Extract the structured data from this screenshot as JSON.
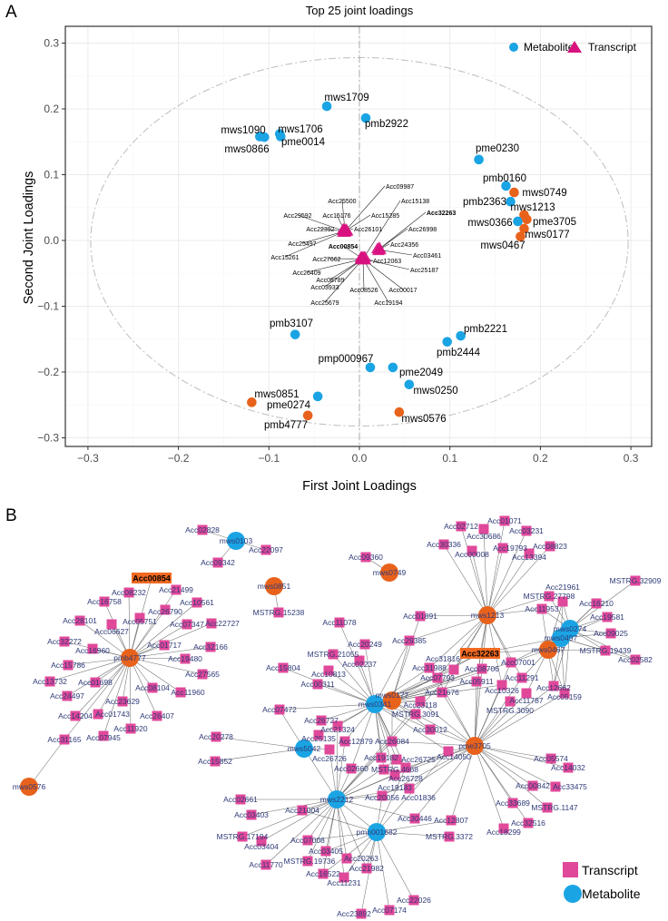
{
  "panel_labels": {
    "a": "A",
    "b": "B"
  },
  "colors": {
    "metabolite_blue": "#1aa4e4",
    "metabolite_orange": "#e8621c",
    "transcript": "#d8127f",
    "highlight": "#f26a21",
    "net_square": "#e0489a",
    "net_text": "#2f3a78"
  },
  "chart_data": [
    {
      "type": "scatter",
      "title": "Top 25 joint loadings",
      "xlabel": "First Joint Loadings",
      "ylabel": "Second Joint Loadings",
      "xlim": [
        -0.325,
        0.325
      ],
      "ylim": [
        -0.313,
        0.327
      ],
      "xticks": [
        "-0.3",
        "-0.2",
        "-0.1",
        "0.0",
        "0.1",
        "0.2",
        "0.3"
      ],
      "yticks": [
        "-0.3",
        "-0.2",
        "-0.1",
        "0.0",
        "0.1",
        "0.2",
        "0.3"
      ],
      "grid": true,
      "legend": {
        "placement": "top-right",
        "entries": [
          "Metabolite",
          "Transcript"
        ]
      },
      "metabolites": [
        {
          "id": "mws1709",
          "x": -0.036,
          "y": 0.204,
          "color": "blue"
        },
        {
          "id": "pmb2922",
          "x": 0.007,
          "y": 0.186,
          "color": "blue"
        },
        {
          "id": "mws1090",
          "x": -0.11,
          "y": 0.158,
          "color": "blue"
        },
        {
          "id": "mws0866",
          "x": -0.105,
          "y": 0.157,
          "color": "blue"
        },
        {
          "id": "mws1706",
          "x": -0.088,
          "y": 0.162,
          "color": "blue"
        },
        {
          "id": "pme0014",
          "x": -0.087,
          "y": 0.158,
          "color": "blue"
        },
        {
          "id": "pme0230",
          "x": 0.132,
          "y": 0.123,
          "color": "blue"
        },
        {
          "id": "pmb0160",
          "x": 0.162,
          "y": 0.083,
          "color": "blue"
        },
        {
          "id": "mws0749",
          "x": 0.171,
          "y": 0.073,
          "color": "orange"
        },
        {
          "id": "pmb2363",
          "x": 0.167,
          "y": 0.059,
          "color": "blue"
        },
        {
          "id": "mws1213",
          "x": 0.182,
          "y": 0.039,
          "color": "orange"
        },
        {
          "id": "mws0366",
          "x": 0.175,
          "y": 0.029,
          "color": "blue"
        },
        {
          "id": "pme3705",
          "x": 0.185,
          "y": 0.032,
          "color": "orange"
        },
        {
          "id": "mws0177",
          "x": 0.182,
          "y": 0.018,
          "color": "orange"
        },
        {
          "id": "mws0467",
          "x": 0.178,
          "y": 0.006,
          "color": "orange"
        },
        {
          "id": "pmb2221",
          "x": 0.112,
          "y": -0.145,
          "color": "blue"
        },
        {
          "id": "pmb2444",
          "x": 0.097,
          "y": -0.154,
          "color": "blue"
        },
        {
          "id": "pmb3107",
          "x": -0.071,
          "y": -0.143,
          "color": "blue"
        },
        {
          "id": "pmp000967",
          "x": 0.012,
          "y": -0.193,
          "color": "blue"
        },
        {
          "id": "pme2049",
          "x": 0.037,
          "y": -0.193,
          "color": "blue"
        },
        {
          "id": "mws0250",
          "x": 0.055,
          "y": -0.219,
          "color": "blue"
        },
        {
          "id": "mws0851",
          "x": -0.119,
          "y": -0.246,
          "color": "orange"
        },
        {
          "id": "pme0274",
          "x": -0.046,
          "y": -0.237,
          "color": "blue"
        },
        {
          "id": "pmb4777",
          "x": -0.057,
          "y": -0.266,
          "color": "orange"
        },
        {
          "id": "mws0576",
          "x": 0.044,
          "y": -0.261,
          "color": "orange"
        }
      ],
      "transcripts": [
        {
          "id": "Acc09987",
          "x": -0.016,
          "y": 0.014
        },
        {
          "id": "Acc25500",
          "x": -0.016,
          "y": 0.014
        },
        {
          "id": "Acc29592",
          "x": -0.016,
          "y": 0.014
        },
        {
          "id": "Acc15176",
          "x": -0.016,
          "y": 0.014
        },
        {
          "id": "Acc15285",
          "x": -0.016,
          "y": 0.014
        },
        {
          "id": "Acc22392",
          "x": -0.016,
          "y": 0.014
        },
        {
          "id": "Acc26101",
          "x": -0.016,
          "y": 0.014
        },
        {
          "id": "Acc25497",
          "x": -0.016,
          "y": 0.014
        },
        {
          "id": "Acc15261",
          "x": -0.016,
          "y": 0.014
        },
        {
          "id": "Acc15138",
          "x": 0.004,
          "y": -0.028
        },
        {
          "id": "Acc00854",
          "x": 0.004,
          "y": -0.028,
          "highlight": true
        },
        {
          "id": "Acc27662",
          "x": 0.004,
          "y": -0.028
        },
        {
          "id": "Acc12063",
          "x": 0.004,
          "y": -0.028
        },
        {
          "id": "Acc26409",
          "x": 0.004,
          "y": -0.028
        },
        {
          "id": "Acc08789",
          "x": 0.004,
          "y": -0.028
        },
        {
          "id": "Acc03933",
          "x": 0.004,
          "y": -0.028
        },
        {
          "id": "Acc08526",
          "x": 0.004,
          "y": -0.028
        },
        {
          "id": "Acc00017",
          "x": 0.004,
          "y": -0.028
        },
        {
          "id": "Acc25679",
          "x": 0.004,
          "y": -0.028
        },
        {
          "id": "Acc19194",
          "x": 0.004,
          "y": -0.028
        },
        {
          "id": "Acc25187",
          "x": 0.004,
          "y": -0.028
        },
        {
          "id": "Acc32263",
          "x": 0.021,
          "y": -0.014,
          "highlight": true
        },
        {
          "id": "Acc26998",
          "x": 0.021,
          "y": -0.014
        },
        {
          "id": "Acc24356",
          "x": 0.021,
          "y": -0.014
        },
        {
          "id": "Acc03461",
          "x": 0.021,
          "y": -0.014
        }
      ]
    },
    {
      "type": "network",
      "legend": {
        "transcript": "Transcript",
        "metabolite": "Metabolite"
      },
      "metabolite_nodes": [
        {
          "id": "mws0103",
          "color": "blue"
        },
        {
          "id": "mws0851",
          "color": "orange"
        },
        {
          "id": "pmb4777",
          "color": "orange"
        },
        {
          "id": "mws0576",
          "color": "orange"
        },
        {
          "id": "mws0749",
          "color": "orange"
        },
        {
          "id": "mws1213",
          "color": "orange"
        },
        {
          "id": "mws0274",
          "color": "blue"
        },
        {
          "id": "mws0497",
          "color": "blue"
        },
        {
          "id": "mws0467",
          "color": "orange"
        },
        {
          "id": "mws0341",
          "color": "blue"
        },
        {
          "id": "mws0177",
          "color": "orange"
        },
        {
          "id": "mws5042",
          "color": "blue"
        },
        {
          "id": "mws2212",
          "color": "blue"
        },
        {
          "id": "pmn001682",
          "color": "blue"
        },
        {
          "id": "pme3705",
          "color": "orange"
        }
      ],
      "highlighted_transcripts": [
        "Acc00854",
        "Acc32263"
      ],
      "edges": {
        "mws0103": [
          "Acc02828",
          "Acc22097",
          "Acc09342"
        ],
        "mws0851": [
          "MSTRG.15238"
        ],
        "mws0749": [
          "Acc09360"
        ],
        "pmb4777": [
          "Acc00854",
          "Acc08232",
          "Acc21499",
          "Acc16758",
          "Acc10561",
          "Acc26790",
          "Acc05751",
          "Acc28101",
          "Acc06627",
          "Acc07347",
          "Acc22727",
          "Acc32272",
          "Acc16960",
          "Acc01717",
          "Acc32166",
          "Acc19480",
          "Acc15786",
          "Acc27565",
          "Acc13732",
          "Acc01698",
          "Acc24497",
          "Acc08104",
          "Acc11960",
          "Acc23629",
          "Acc14204",
          "Acc01743",
          "Acc26407",
          "Acc11920",
          "Acc07945",
          "Acc31165"
        ],
        "mws0576": [
          "Acc31165"
        ],
        "mws1213": [
          "Acc02712",
          "Acc30686",
          "Acc01071",
          "Acc03231",
          "Acc30336",
          "Acc00008",
          "Acc19793",
          "Acc08823",
          "Acc13394",
          "Acc01891",
          "Acc11953",
          "MSTRG.27798",
          "Acc32263",
          "Acc29385",
          "Acc31988",
          "Acc07793",
          "Acc31816",
          "Acc08706",
          "Acc05911",
          "Acc10326",
          "Acc07001",
          "Acc11291",
          "Acc21676"
        ],
        "mws0274": [
          "MSTRG.32909",
          "MSTRG.27798",
          "Acc21961",
          "Acc16210",
          "Acc11953",
          "Acc19581",
          "Acc09025",
          "MSTRG.19439",
          "Acc02582",
          "Acc12662",
          "Acc05159"
        ],
        "mws0497": [
          "Acc21961",
          "Acc16210",
          "Acc19581",
          "Acc09025",
          "MSTRG.19439",
          "Acc02582",
          "Acc12662",
          "Acc05159",
          "Acc07001",
          "Acc32263"
        ],
        "mws0467": [
          "Acc21961",
          "Acc11953",
          "MSTRG.19439",
          "Acc12662",
          "Acc05159",
          "Acc11787",
          "Acc11291",
          "Acc32263",
          "Acc07001"
        ],
        "mws0341": [
          "Acc11078",
          "Acc20249",
          "MSTRG.21055",
          "Acc02237",
          "Acc10813",
          "Acc00311",
          "Acc15804",
          "Acc07472",
          "Acc29385",
          "Acc31988",
          "Acc07793",
          "Acc32263",
          "Acc23118",
          "MSTRG.3091",
          "Acc26727",
          "Acc21324",
          "Acc25135",
          "Acc12879",
          "Acc26084",
          "Acc19182",
          "Acc02660",
          "MSTRG.4668",
          "Acc26725",
          "Acc26728",
          "Acc19183",
          "Acc30012",
          "Acc14050",
          "Acc31816",
          "Acc08706",
          "Acc05911",
          "Acc21676"
        ],
        "mws0177": [
          "Acc01891",
          "Acc29385",
          "Acc32263",
          "Acc07001",
          "Acc08706",
          "Acc05911",
          "Acc10326",
          "Acc23118",
          "MSTRG.3091",
          "Acc30012",
          "Acc26084"
        ],
        "mws5042": [
          "Acc20278",
          "Acc15852",
          "Acc07472",
          "Acc26726",
          "mws2212"
        ],
        "mws2212": [
          "Acc02661",
          "Acc03403",
          "MSTRG.17194",
          "Acc11770",
          "Acc21004",
          "Acc03404",
          "Acc07008",
          "Acc03405",
          "MSTRG.19736",
          "Acc16522",
          "Acc20263",
          "Acc11231",
          "Acc21982",
          "Acc30446",
          "Acc20056",
          "Acc01836",
          "Acc19183",
          "Acc26725",
          "Acc02660",
          "Acc12879",
          "Acc26084",
          "Acc14050",
          "Acc26726",
          "Acc21324",
          "Acc23118",
          "pmn001682",
          "Acc31816"
        ],
        "pmn001682": [
          "Acc07008",
          "Acc22026",
          "Acc07174",
          "Acc23892",
          "Acc21982",
          "Acc11231",
          "MSTRG.3372",
          "Acc12807",
          "Acc20056",
          "Acc21004",
          "Acc03405",
          "Acc16522",
          "Acc14050",
          "Acc26728"
        ],
        "pme3705": [
          "Acc05574",
          "Acc14032",
          "Acc00842",
          "Acc33475",
          "Acc33689",
          "MSTRG.1147",
          "Acc32516",
          "Acc18299",
          "Acc12807",
          "Acc30446",
          "Acc14050",
          "Acc26084",
          "Acc30012",
          "MSTRG.3090",
          "Acc11787",
          "Acc05159",
          "Acc12662",
          "Acc10326",
          "Acc05911",
          "Acc07793",
          "Acc23118",
          "MSTRG.3091",
          "Acc19183",
          "Acc26728",
          "Acc01836",
          "Acc20056",
          "Acc07001",
          "Acc32263",
          "Acc21676",
          "Acc11291",
          "Acc08706"
        ]
      }
    }
  ]
}
